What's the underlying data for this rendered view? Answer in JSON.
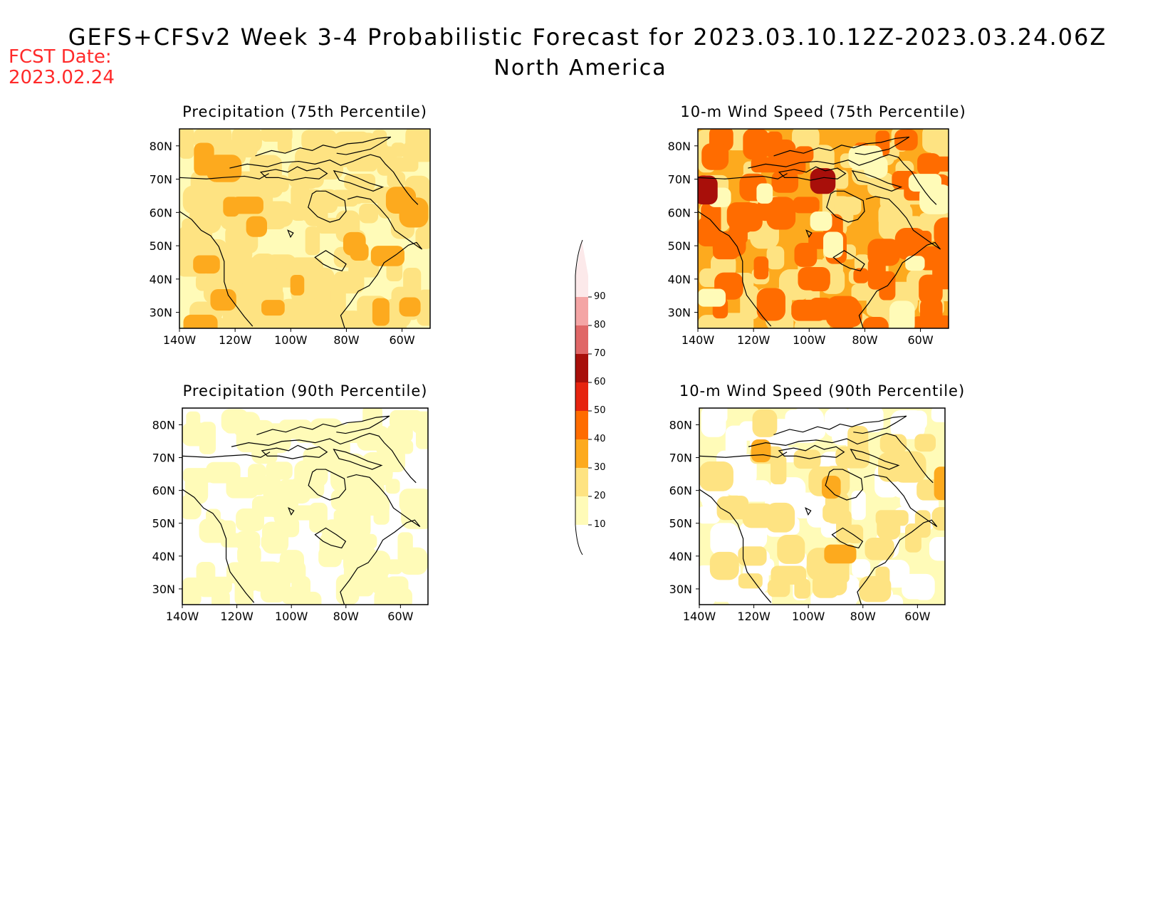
{
  "header": {
    "title": "GEFS+CFSv2 Week 3-4 Probabilistic Forecast for 2023.03.10.12Z-2023.03.24.06Z",
    "subtitle": "North America",
    "fcst_label": "FCST Date:",
    "fcst_date": "2023.02.24",
    "fcst_color": "#ff2a2a"
  },
  "panels": [
    {
      "title": "Precipitation (75th Percentile)",
      "level": "moderate"
    },
    {
      "title": "10-m Wind Speed (75th Percentile)",
      "level": "high"
    },
    {
      "title": "Precipitation (90th Percentile)",
      "level": "low"
    },
    {
      "title": "10-m Wind Speed (90th Percentile)",
      "level": "low-mid"
    }
  ],
  "axes": {
    "lat_labels": [
      "80N",
      "70N",
      "60N",
      "50N",
      "40N",
      "30N"
    ],
    "lon_labels": [
      "140W",
      "120W",
      "100W",
      "80W",
      "60W"
    ]
  },
  "colorbar": {
    "levels": [
      "10",
      "20",
      "30",
      "40",
      "50",
      "60",
      "70",
      "80",
      "90"
    ],
    "colors": [
      "#fffbb8",
      "#fee382",
      "#fdaa1e",
      "#ff6c00",
      "#e6240f",
      "#a80f0a",
      "#e06767",
      "#f4a5a5",
      "#fce9ea"
    ]
  }
}
